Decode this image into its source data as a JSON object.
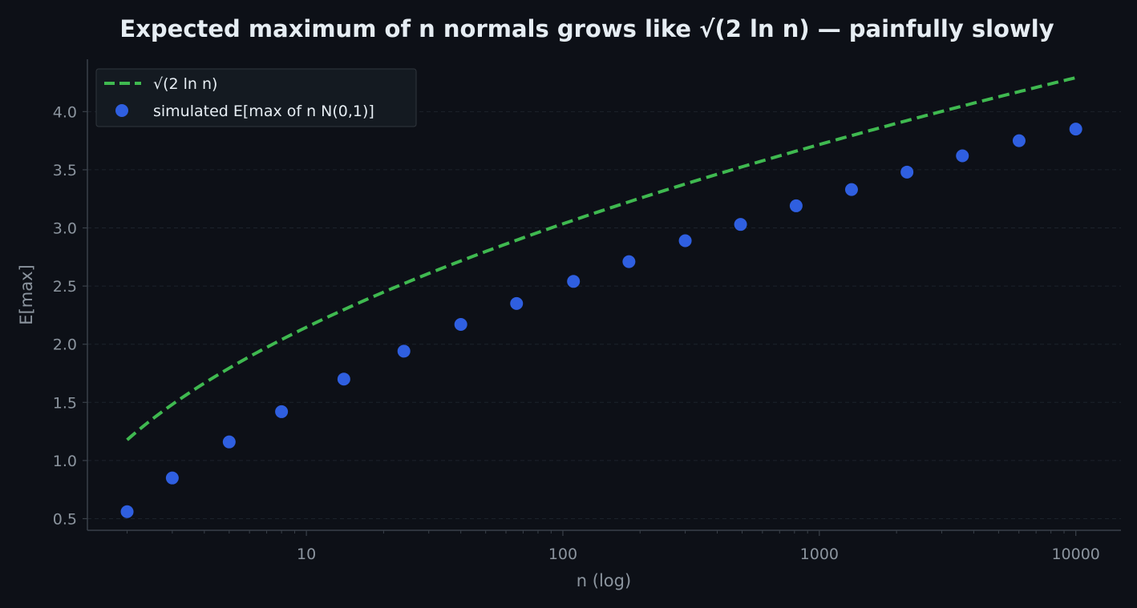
{
  "chart_data": {
    "type": "scatter",
    "title": "Expected maximum of n normals grows like √(2 ln n) — painfully slowly",
    "xlabel": "n (log)",
    "ylabel": "E[max]",
    "x_scale": "log",
    "xlim": [
      1.4,
      15000
    ],
    "ylim": [
      0.4,
      4.45
    ],
    "x_ticks": [
      {
        "value": 10,
        "label": "10"
      },
      {
        "value": 100,
        "label": "100"
      },
      {
        "value": 1000,
        "label": "1000"
      },
      {
        "value": 10000,
        "label": "10000"
      }
    ],
    "y_ticks": [
      {
        "value": 0.5,
        "label": "0.5"
      },
      {
        "value": 1.0,
        "label": "1.0"
      },
      {
        "value": 1.5,
        "label": "1.5"
      },
      {
        "value": 2.0,
        "label": "2.0"
      },
      {
        "value": 2.5,
        "label": "2.5"
      },
      {
        "value": 3.0,
        "label": "3.0"
      },
      {
        "value": 3.5,
        "label": "3.5"
      },
      {
        "value": 4.0,
        "label": "4.0"
      }
    ],
    "grid": "horizontal",
    "legend_position": "top-left",
    "series": [
      {
        "name": "√(2 ln n)",
        "kind": "line",
        "style": "dashed",
        "color": "#3fb950",
        "function": "sqrt(2*ln(n))",
        "x_range": [
          2,
          10000
        ]
      },
      {
        "name": "simulated E[max of n N(0,1)]",
        "kind": "scatter",
        "color": "#2f5fe0",
        "x": [
          2,
          3,
          5,
          8,
          14,
          24,
          40,
          66,
          110,
          181,
          300,
          493,
          812,
          1335,
          2197,
          3613,
          6010,
          10000
        ],
        "y": [
          0.56,
          0.85,
          1.16,
          1.42,
          1.7,
          1.94,
          2.17,
          2.35,
          2.54,
          2.71,
          2.89,
          3.03,
          3.19,
          3.33,
          3.48,
          3.62,
          3.75,
          3.85
        ]
      }
    ]
  },
  "colors": {
    "background": "#0d1017",
    "axis": "#3a414a",
    "grid": "#1c222b",
    "legend_bg": "#141a21",
    "legend_border": "#30363d"
  }
}
